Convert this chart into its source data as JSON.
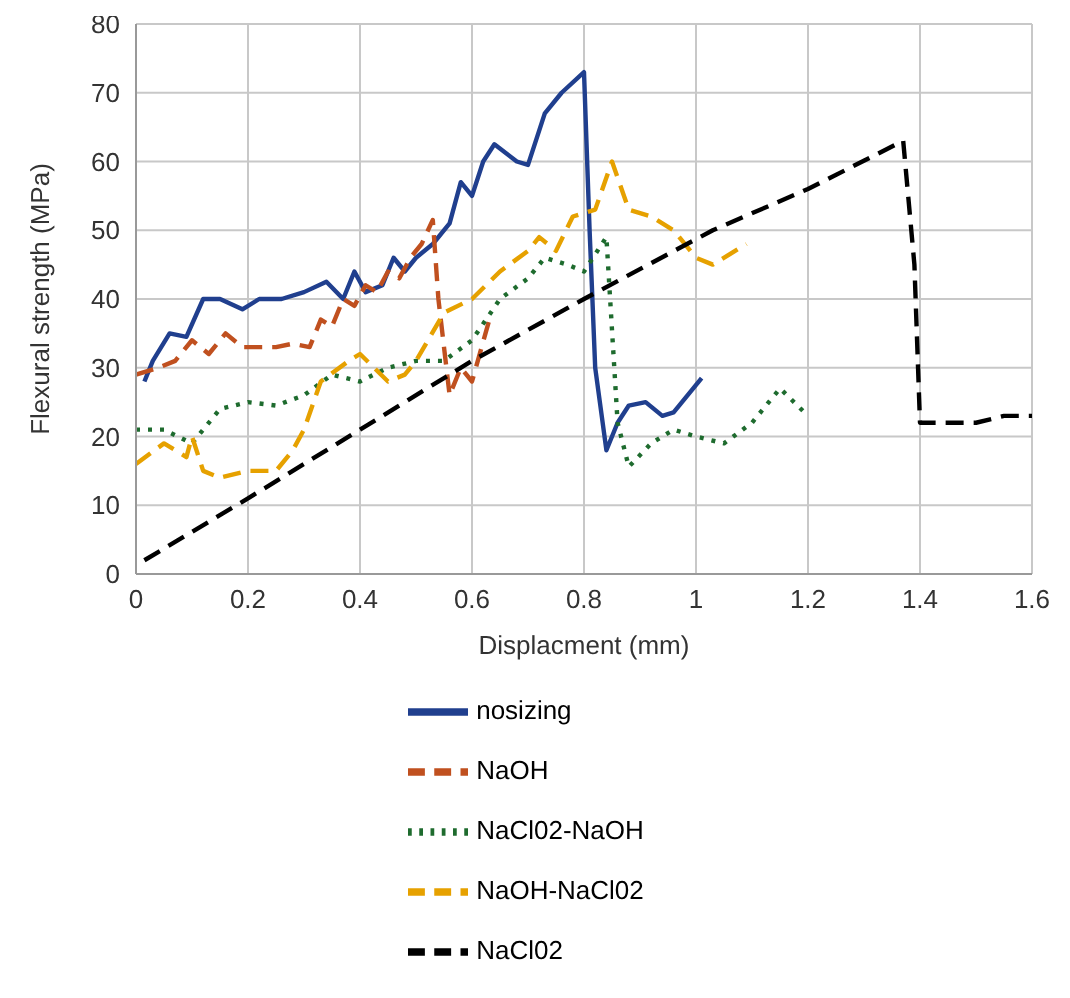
{
  "chart_data": {
    "type": "line",
    "xlabel": "Displacment (mm)",
    "ylabel": "Flexural strength (MPa)",
    "xlim": [
      0,
      1.6
    ],
    "xticks": [
      0,
      0.2,
      0.4,
      0.6,
      0.8,
      1,
      1.2,
      1.4,
      1.6
    ],
    "ylim": [
      0,
      80
    ],
    "yticks": [
      0,
      10,
      20,
      30,
      40,
      50,
      60,
      70,
      80
    ],
    "grid": true,
    "legend": "bottom",
    "marker": "none",
    "series": [
      {
        "name": "nosizing",
        "color": "#203f8e",
        "line_style": "solid",
        "x": [
          0.015,
          0.03,
          0.06,
          0.09,
          0.12,
          0.15,
          0.19,
          0.22,
          0.26,
          0.3,
          0.34,
          0.37,
          0.39,
          0.41,
          0.44,
          0.46,
          0.48,
          0.5,
          0.53,
          0.56,
          0.58,
          0.6,
          0.62,
          0.64,
          0.68,
          0.7,
          0.73,
          0.76,
          0.8,
          0.81,
          0.82,
          0.84,
          0.86,
          0.88,
          0.91,
          0.94,
          0.96,
          1.01
        ],
        "values": [
          28,
          31,
          35,
          34.5,
          40,
          40,
          38.5,
          40,
          40,
          41,
          42.5,
          40,
          44,
          41,
          42,
          46,
          44,
          46,
          48,
          51,
          57,
          55,
          60,
          62.5,
          60,
          59.5,
          67,
          70,
          73,
          50,
          30,
          18,
          22,
          24.5,
          25,
          23,
          23.5,
          28.5
        ]
      },
      {
        "name": "NaOH",
        "color": "#c0501f",
        "line_style": "dashed",
        "x": [
          0.0,
          0.04,
          0.07,
          0.1,
          0.13,
          0.16,
          0.19,
          0.22,
          0.25,
          0.28,
          0.31,
          0.33,
          0.35,
          0.37,
          0.39,
          0.41,
          0.43,
          0.45,
          0.47,
          0.49,
          0.51,
          0.53,
          0.54,
          0.56,
          0.58,
          0.6,
          0.63
        ],
        "values": [
          29,
          30,
          31,
          34,
          32,
          35,
          33,
          33,
          33,
          33.5,
          33,
          37,
          36,
          40,
          39,
          42,
          41,
          44,
          43,
          46,
          48,
          51.5,
          40,
          26,
          30,
          28,
          36.7
        ]
      },
      {
        "name": "NaCl02-NaOH",
        "color": "#1e6b2e",
        "line_style": "dotted",
        "x": [
          0.0,
          0.05,
          0.1,
          0.15,
          0.2,
          0.25,
          0.3,
          0.35,
          0.4,
          0.45,
          0.5,
          0.55,
          0.6,
          0.65,
          0.7,
          0.73,
          0.77,
          0.8,
          0.84,
          0.86,
          0.88,
          0.92,
          0.96,
          1.0,
          1.05,
          1.1,
          1.15,
          1.2
        ],
        "values": [
          21,
          21,
          19,
          24,
          25,
          24.5,
          26,
          29,
          28,
          30,
          31,
          31,
          34,
          40,
          43,
          46,
          45,
          44,
          49,
          22,
          15.6,
          19,
          21,
          20,
          19,
          22,
          27,
          23
        ]
      },
      {
        "name": "NaOH-NaCl02",
        "color": "#e6a100",
        "line_style": "dashed",
        "x": [
          0.0,
          0.05,
          0.09,
          0.1,
          0.12,
          0.15,
          0.2,
          0.25,
          0.28,
          0.3,
          0.33,
          0.38,
          0.4,
          0.45,
          0.48,
          0.5,
          0.55,
          0.6,
          0.65,
          0.7,
          0.72,
          0.75,
          0.78,
          0.82,
          0.85,
          0.88,
          0.92,
          0.96,
          1.0,
          1.03,
          1.09
        ],
        "values": [
          16,
          19,
          17,
          20,
          15,
          14,
          15,
          15,
          18,
          21,
          28,
          31,
          32,
          28,
          29,
          31,
          38,
          40,
          44,
          47,
          49,
          47,
          52,
          53,
          60,
          53,
          52,
          50,
          46,
          45,
          48
        ]
      },
      {
        "name": "NaCl02",
        "color": "#000000",
        "line_style": "dashed",
        "x": [
          0.015,
          0.2,
          0.4,
          0.6,
          0.8,
          1.03,
          1.2,
          1.37,
          1.39,
          1.4,
          1.45,
          1.5,
          1.55,
          1.6
        ],
        "values": [
          2,
          11,
          21,
          31,
          40,
          50,
          56,
          63,
          45,
          22,
          22,
          22,
          23,
          23
        ]
      }
    ]
  }
}
